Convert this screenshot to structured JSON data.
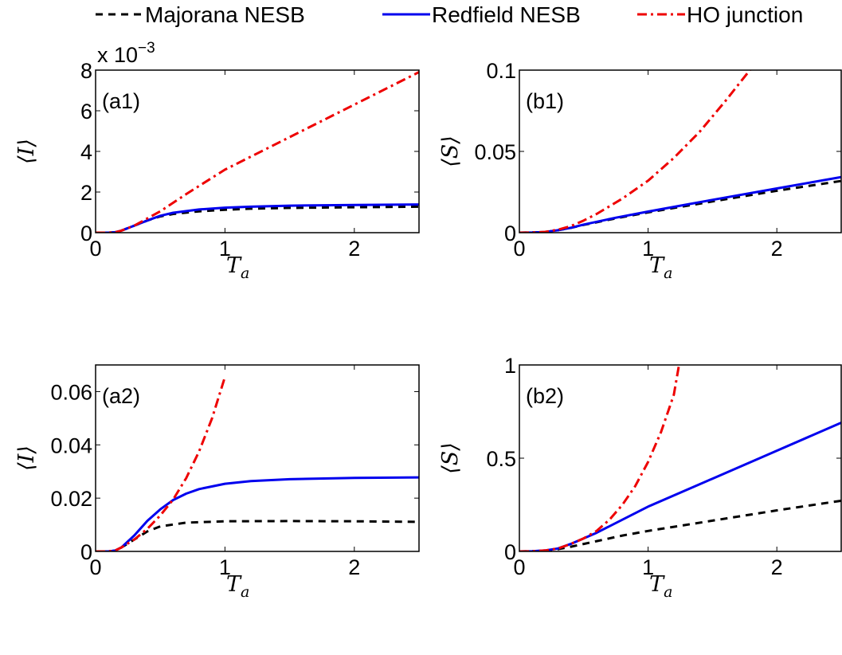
{
  "legend": [
    {
      "label": "Majorana NESB",
      "color": "#000000",
      "dash": "9,7"
    },
    {
      "label": "Redfield NESB",
      "color": "#0000ee",
      "dash": ""
    },
    {
      "label": "HO junction",
      "color": "#ee0000",
      "dash": "12,5,3,5"
    }
  ],
  "chart_data": [
    {
      "type": "line",
      "panel_label": "(a1)",
      "xlabel": "T_a",
      "ylabel": "⟨I⟩",
      "xlim": [
        0,
        2.5
      ],
      "ylim": [
        0,
        0.008
      ],
      "xticks": [
        0,
        1,
        2
      ],
      "xtick_labels": [
        "0",
        "1",
        "2"
      ],
      "yticks": [
        0,
        0.002,
        0.004,
        0.006,
        0.008
      ],
      "ytick_labels": [
        "0",
        "2",
        "4",
        "6",
        "8"
      ],
      "multiplier_label": "x 10",
      "multiplier_exp": "−3",
      "series": [
        {
          "name": "Majorana NESB",
          "x": [
            0,
            0.1,
            0.15,
            0.2,
            0.3,
            0.4,
            0.5,
            0.6,
            0.8,
            1.0,
            1.2,
            1.5,
            2.0,
            2.5
          ],
          "y": [
            0,
            0,
            2e-05,
            0.0001,
            0.00035,
            0.0006,
            0.0008,
            0.00092,
            0.00105,
            0.00113,
            0.00118,
            0.00122,
            0.00125,
            0.00128
          ]
        },
        {
          "name": "Redfield NESB",
          "x": [
            0,
            0.1,
            0.15,
            0.2,
            0.3,
            0.4,
            0.5,
            0.6,
            0.8,
            1.0,
            1.2,
            1.5,
            2.0,
            2.5
          ],
          "y": [
            0,
            0,
            2e-05,
            0.0001,
            0.00035,
            0.0006,
            0.00083,
            0.00098,
            0.00114,
            0.00123,
            0.00128,
            0.00133,
            0.00136,
            0.00139
          ]
        },
        {
          "name": "HO junction",
          "x": [
            0,
            0.1,
            0.15,
            0.2,
            0.3,
            0.4,
            0.5,
            0.7,
            1.0,
            1.5,
            2.0,
            2.5
          ],
          "y": [
            0,
            0,
            2e-05,
            0.0001,
            0.00035,
            0.0007,
            0.00105,
            0.0019,
            0.0031,
            0.0047,
            0.0063,
            0.0079
          ]
        }
      ]
    },
    {
      "type": "line",
      "panel_label": "(b1)",
      "xlabel": "T_a",
      "ylabel": "⟨S⟩",
      "xlim": [
        0,
        2.5
      ],
      "ylim": [
        0,
        0.1
      ],
      "xticks": [
        0,
        1,
        2
      ],
      "xtick_labels": [
        "0",
        "1",
        "2"
      ],
      "yticks": [
        0,
        0.05,
        0.1
      ],
      "ytick_labels": [
        "0",
        "0.05",
        "0.1"
      ],
      "series": [
        {
          "name": "Majorana NESB",
          "x": [
            0,
            0.1,
            0.2,
            0.3,
            0.4,
            0.5,
            0.75,
            1.0,
            1.5,
            2.0,
            2.5
          ],
          "y": [
            0,
            0.0001,
            0.0004,
            0.0015,
            0.003,
            0.0048,
            0.0088,
            0.0125,
            0.0192,
            0.0258,
            0.0318
          ]
        },
        {
          "name": "Redfield NESB",
          "x": [
            0,
            0.1,
            0.2,
            0.3,
            0.4,
            0.5,
            0.75,
            1.0,
            1.5,
            2.0,
            2.5
          ],
          "y": [
            0,
            0.0001,
            0.0004,
            0.0015,
            0.003,
            0.005,
            0.0092,
            0.013,
            0.0202,
            0.0272,
            0.0342
          ]
        },
        {
          "name": "HO junction",
          "x": [
            0,
            0.1,
            0.2,
            0.3,
            0.4,
            0.5,
            0.6,
            0.8,
            1.0,
            1.2,
            1.4,
            1.6,
            1.8
          ],
          "y": [
            0,
            0.0001,
            0.0005,
            0.0018,
            0.004,
            0.0075,
            0.0115,
            0.021,
            0.032,
            0.046,
            0.062,
            0.081,
            0.101
          ]
        }
      ]
    },
    {
      "type": "line",
      "panel_label": "(a2)",
      "xlabel": "T_a",
      "ylabel": "⟨I⟩",
      "xlim": [
        0,
        2.5
      ],
      "ylim": [
        0,
        0.07
      ],
      "xticks": [
        0,
        1,
        2
      ],
      "xtick_labels": [
        "0",
        "1",
        "2"
      ],
      "yticks": [
        0,
        0.02,
        0.04,
        0.06
      ],
      "ytick_labels": [
        "0",
        "0.02",
        "0.04",
        "0.06"
      ],
      "series": [
        {
          "name": "Majorana NESB",
          "x": [
            0,
            0.1,
            0.15,
            0.2,
            0.3,
            0.4,
            0.5,
            0.7,
            1.0,
            1.5,
            2.0,
            2.5
          ],
          "y": [
            0,
            0,
            0.0003,
            0.0015,
            0.0045,
            0.0075,
            0.0094,
            0.0108,
            0.0113,
            0.0114,
            0.0113,
            0.0111
          ]
        },
        {
          "name": "Redfield NESB",
          "x": [
            0,
            0.1,
            0.15,
            0.2,
            0.3,
            0.4,
            0.5,
            0.6,
            0.7,
            0.8,
            1.0,
            1.2,
            1.5,
            2.0,
            2.5
          ],
          "y": [
            0,
            0,
            0.0003,
            0.0015,
            0.006,
            0.0115,
            0.0158,
            0.0193,
            0.0217,
            0.0234,
            0.0254,
            0.0264,
            0.0271,
            0.0276,
            0.0278
          ]
        },
        {
          "name": "HO junction",
          "x": [
            0,
            0.1,
            0.15,
            0.2,
            0.3,
            0.4,
            0.5,
            0.6,
            0.7,
            0.8,
            0.9,
            1.0
          ],
          "y": [
            0,
            0,
            0.0003,
            0.0015,
            0.0045,
            0.0085,
            0.0135,
            0.0195,
            0.0275,
            0.0375,
            0.05,
            0.0655
          ]
        }
      ]
    },
    {
      "type": "line",
      "panel_label": "(b2)",
      "xlabel": "T_a",
      "ylabel": "⟨S⟩",
      "xlim": [
        0,
        2.5
      ],
      "ylim": [
        0,
        1
      ],
      "xticks": [
        0,
        1,
        2
      ],
      "xtick_labels": [
        "0",
        "1",
        "2"
      ],
      "yticks": [
        0,
        0.5,
        1
      ],
      "ytick_labels": [
        "0",
        "0.5",
        "1"
      ],
      "series": [
        {
          "name": "Majorana NESB",
          "x": [
            0,
            0.1,
            0.2,
            0.3,
            0.4,
            0.5,
            0.6,
            0.8,
            1.0,
            1.5,
            2.0,
            2.5
          ],
          "y": [
            0,
            0.001,
            0.004,
            0.012,
            0.025,
            0.04,
            0.055,
            0.085,
            0.11,
            0.165,
            0.22,
            0.272
          ]
        },
        {
          "name": "Redfield NESB",
          "x": [
            0,
            0.1,
            0.2,
            0.3,
            0.4,
            0.5,
            0.6,
            0.8,
            1.0,
            1.5,
            2.0,
            2.5
          ],
          "y": [
            0,
            0.001,
            0.005,
            0.016,
            0.04,
            0.07,
            0.1,
            0.17,
            0.24,
            0.39,
            0.54,
            0.69
          ]
        },
        {
          "name": "HO junction",
          "x": [
            0,
            0.1,
            0.2,
            0.3,
            0.4,
            0.5,
            0.6,
            0.7,
            0.8,
            0.9,
            1.0,
            1.1,
            1.2,
            1.24
          ],
          "y": [
            0,
            0.001,
            0.005,
            0.016,
            0.04,
            0.07,
            0.11,
            0.17,
            0.25,
            0.35,
            0.48,
            0.64,
            0.84,
            1.0
          ]
        }
      ]
    }
  ]
}
